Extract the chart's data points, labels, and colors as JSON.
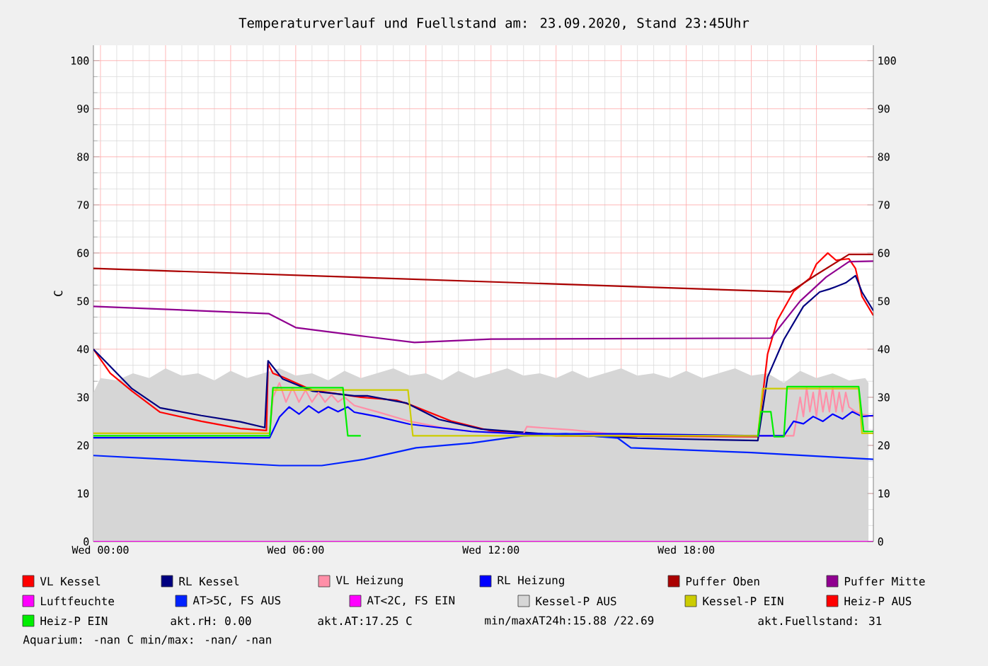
{
  "chart_data": {
    "type": "line",
    "title": "Temperaturverlauf und Fuellstand am: 23.09.2020, Stand 23:45Uhr",
    "ylabel": "C",
    "xlim": [
      "2020-09-22T23:47",
      "2020-09-23T23:45"
    ],
    "xticks": [
      {
        "value": "2020-09-23T00:00",
        "label": "Wed 00:00"
      },
      {
        "value": "2020-09-23T02:00",
        "label": null
      },
      {
        "value": "2020-09-23T04:00",
        "label": null
      },
      {
        "value": "2020-09-23T06:00",
        "label": "Wed 06:00"
      },
      {
        "value": "2020-09-23T08:00",
        "label": null
      },
      {
        "value": "2020-09-23T10:00",
        "label": null
      },
      {
        "value": "2020-09-23T12:00",
        "label": "Wed 12:00"
      },
      {
        "value": "2020-09-23T14:00",
        "label": null
      },
      {
        "value": "2020-09-23T16:00",
        "label": null
      },
      {
        "value": "2020-09-23T18:00",
        "label": "Wed 18:00"
      },
      {
        "value": "2020-09-23T20:00",
        "label": null
      },
      {
        "value": "2020-09-23T22:00",
        "label": null
      }
    ],
    "ylim": [
      0,
      103.2
    ],
    "yticks": [
      0,
      10,
      20,
      30,
      40,
      50,
      60,
      70,
      80,
      90,
      100
    ],
    "y2lim": [
      0,
      103.2
    ],
    "y2ticks": [
      0,
      10,
      20,
      30,
      40,
      50,
      60,
      70,
      80,
      90,
      100
    ],
    "grid": true,
    "legend": "bottom",
    "annotations": [
      "akt.rH: 0.00",
      "akt.AT:17.25 C",
      "min/maxAT24h:15.88 /22.69",
      "akt.Fuellstand:   31",
      "Aquarium: -nan C  min/max: -nan/ -nan"
    ],
    "series": [
      {
        "name": "VL Kessel",
        "color": "#ff0000",
        "x": [
          "2020-09-22T23:47",
          "2020-09-23T00:18",
          "2020-09-23T00:58",
          "2020-09-23T01:50",
          "2020-09-23T03:06",
          "2020-09-23T04:18",
          "2020-09-23T05:06",
          "2020-09-23T05:09",
          "2020-09-23T05:18",
          "2020-09-23T05:36",
          "2020-09-23T06:30",
          "2020-09-23T08:00",
          "2020-09-23T09:06",
          "2020-09-23T09:30",
          "2020-09-23T10:48",
          "2020-09-23T12:00",
          "2020-09-23T14:00",
          "2020-09-23T20:12",
          "2020-09-23T20:30",
          "2020-09-23T20:48",
          "2020-09-23T21:18",
          "2020-09-23T21:48",
          "2020-09-23T22:00",
          "2020-09-23T22:21",
          "2020-09-23T22:36",
          "2020-09-23T23:00",
          "2020-09-23T23:12",
          "2020-09-23T23:24",
          "2020-09-23T23:45"
        ],
        "values": [
          40,
          35,
          31.3,
          26.9,
          25,
          23.5,
          23.1,
          37,
          35,
          34.2,
          31.5,
          30,
          29.4,
          28.5,
          25,
          23,
          22,
          21.8,
          39,
          46,
          52,
          54.8,
          57.7,
          60,
          58.5,
          58.8,
          56.8,
          51,
          47
        ]
      },
      {
        "name": "RL Kessel",
        "color": "#000080",
        "x": [
          "2020-09-22T23:47",
          "2020-09-23T00:58",
          "2020-09-23T01:50",
          "2020-09-23T03:06",
          "2020-09-23T04:18",
          "2020-09-23T05:03",
          "2020-09-23T05:09",
          "2020-09-23T05:36",
          "2020-09-23T06:30",
          "2020-09-23T07:48",
          "2020-09-23T08:12",
          "2020-09-23T09:24",
          "2020-09-23T10:24",
          "2020-09-23T11:42",
          "2020-09-23T13:36",
          "2020-09-23T16:30",
          "2020-09-23T20:12",
          "2020-09-23T20:30",
          "2020-09-23T21:00",
          "2020-09-23T21:36",
          "2020-09-23T22:06",
          "2020-09-23T22:24",
          "2020-09-23T22:36",
          "2020-09-23T22:54",
          "2020-09-23T23:12",
          "2020-09-23T23:24",
          "2020-09-23T23:45"
        ],
        "values": [
          40,
          31.8,
          27.8,
          26.2,
          24.9,
          23.7,
          37.6,
          33.8,
          31.3,
          30.3,
          30.3,
          28.8,
          25.4,
          23.4,
          22.4,
          21.5,
          21,
          34.2,
          42,
          48.9,
          51.9,
          52.5,
          53,
          53.8,
          55.3,
          51.9,
          48
        ]
      },
      {
        "name": "VL Heizung",
        "color": "#ff8fa8",
        "x": [
          "2020-09-22T23:47",
          "2020-09-23T05:12",
          "2020-09-23T05:18",
          "2020-09-23T05:30",
          "2020-09-23T05:42",
          "2020-09-23T05:54",
          "2020-09-23T06:06",
          "2020-09-23T06:18",
          "2020-09-23T06:30",
          "2020-09-23T06:42",
          "2020-09-23T06:54",
          "2020-09-23T07:06",
          "2020-09-23T07:18",
          "2020-09-23T07:30",
          "2020-09-23T07:48",
          "2020-09-23T08:30",
          "2020-09-23T09:30",
          "2020-09-23T10:30",
          "2020-09-23T11:24",
          "2020-09-23T13:00",
          "2020-09-23T13:06",
          "2020-09-23T14:30",
          "2020-09-23T16:00",
          "2020-09-23T20:12",
          "2020-09-23T21:18",
          "2020-09-23T21:30",
          "2020-09-23T21:36",
          "2020-09-23T21:42",
          "2020-09-23T21:48",
          "2020-09-23T21:54",
          "2020-09-23T22:00",
          "2020-09-23T22:06",
          "2020-09-23T22:12",
          "2020-09-23T22:18",
          "2020-09-23T22:24",
          "2020-09-23T22:30",
          "2020-09-23T22:36",
          "2020-09-23T22:42",
          "2020-09-23T22:48",
          "2020-09-23T22:54",
          "2020-09-23T23:00",
          "2020-09-23T23:12",
          "2020-09-23T23:24",
          "2020-09-23T23:45"
        ],
        "values": [
          22.5,
          22.5,
          30,
          33,
          29,
          32,
          29,
          31.5,
          29,
          31,
          29,
          30.5,
          29,
          30,
          28.3,
          27,
          25,
          23.7,
          22.9,
          22.4,
          23.9,
          23.2,
          22.2,
          22,
          22,
          30,
          26,
          32,
          27,
          31,
          26,
          32,
          27,
          31,
          27,
          32,
          27,
          31,
          27,
          31,
          28,
          27,
          26.5,
          26
        ]
      },
      {
        "name": "RL Heizung",
        "color": "#0000ff",
        "x": [
          "2020-09-22T23:47",
          "2020-09-23T05:12",
          "2020-09-23T05:30",
          "2020-09-23T05:48",
          "2020-09-23T06:06",
          "2020-09-23T06:24",
          "2020-09-23T06:42",
          "2020-09-23T07:00",
          "2020-09-23T07:18",
          "2020-09-23T07:36",
          "2020-09-23T07:48",
          "2020-09-23T08:30",
          "2020-09-23T09:30",
          "2020-09-23T11:24",
          "2020-09-23T13:00",
          "2020-09-23T16:00",
          "2020-09-23T20:12",
          "2020-09-23T21:00",
          "2020-09-23T21:18",
          "2020-09-23T21:36",
          "2020-09-23T21:54",
          "2020-09-23T22:12",
          "2020-09-23T22:30",
          "2020-09-23T22:48",
          "2020-09-23T23:06",
          "2020-09-23T23:24",
          "2020-09-23T23:45"
        ],
        "values": [
          21.6,
          21.6,
          25.9,
          28,
          26.5,
          28.2,
          26.8,
          28,
          27,
          28,
          26.9,
          26,
          24.4,
          22.9,
          22.4,
          22.4,
          22,
          22,
          25,
          24.5,
          26,
          25,
          26.5,
          25.5,
          27,
          26,
          26.2
        ]
      },
      {
        "name": "Puffer Oben",
        "color": "#aa0000",
        "x": [
          "2020-09-22T23:47",
          "2020-09-23T21:12",
          "2020-09-23T22:00",
          "2020-09-23T23:00",
          "2020-09-23T23:45"
        ],
        "values": [
          56.8,
          51.9,
          55.5,
          59.7,
          59.7
        ]
      },
      {
        "name": "Puffer Mitte",
        "color": "#900090",
        "x": [
          "2020-09-22T23:47",
          "2020-09-23T05:10",
          "2020-09-23T06:00",
          "2020-09-23T08:12",
          "2020-09-23T09:39",
          "2020-09-23T12:00",
          "2020-09-23T20:36",
          "2020-09-23T21:30",
          "2020-09-23T22:18",
          "2020-09-23T23:00",
          "2020-09-23T23:45"
        ],
        "values": [
          48.9,
          47.4,
          44.5,
          42.6,
          41.4,
          42.1,
          42.3,
          50,
          55,
          58.2,
          58.3
        ]
      },
      {
        "name": "Luftfeuchte",
        "color": "#ff00ff",
        "x": [
          "2020-09-22T23:47",
          "2020-09-23T23:45"
        ],
        "values": [
          0,
          0
        ]
      },
      {
        "name": "AT>5C, FS AUS",
        "color": "#0022ff",
        "x": [
          "2020-09-22T23:47",
          "2020-09-23T02:00",
          "2020-09-23T05:30",
          "2020-09-23T06:48",
          "2020-09-23T08:06",
          "2020-09-23T09:42",
          "2020-09-23T11:24",
          "2020-09-23T13:00",
          "2020-09-23T14:18",
          "2020-09-23T15:54",
          "2020-09-23T16:18",
          "2020-09-23T20:00",
          "2020-09-23T23:45"
        ],
        "values": [
          17.9,
          17.1,
          15.8,
          15.8,
          17.1,
          19.5,
          20.5,
          22,
          22.4,
          21.5,
          19.5,
          18.5,
          17.1
        ]
      },
      {
        "name": "AT<2C, FS EIN",
        "color": "#ff00ff"
      },
      {
        "name": "Kessel-P AUS",
        "type": "area",
        "color": "#d6d6d6",
        "x": [
          "2020-09-22T23:47",
          "2020-09-23T00:00",
          "2020-09-23T00:30",
          "2020-09-23T01:00",
          "2020-09-23T01:30",
          "2020-09-23T02:00",
          "2020-09-23T02:30",
          "2020-09-23T03:00",
          "2020-09-23T03:30",
          "2020-09-23T04:00",
          "2020-09-23T04:30",
          "2020-09-23T05:00",
          "2020-09-23T05:30",
          "2020-09-23T06:00",
          "2020-09-23T06:30",
          "2020-09-23T07:00",
          "2020-09-23T07:30",
          "2020-09-23T08:00",
          "2020-09-23T08:30",
          "2020-09-23T09:00",
          "2020-09-23T09:30",
          "2020-09-23T10:00",
          "2020-09-23T10:30",
          "2020-09-23T11:00",
          "2020-09-23T11:30",
          "2020-09-23T12:00",
          "2020-09-23T12:30",
          "2020-09-23T13:00",
          "2020-09-23T13:30",
          "2020-09-23T14:00",
          "2020-09-23T14:30",
          "2020-09-23T15:00",
          "2020-09-23T15:30",
          "2020-09-23T16:00",
          "2020-09-23T16:30",
          "2020-09-23T17:00",
          "2020-09-23T17:30",
          "2020-09-23T18:00",
          "2020-09-23T18:30",
          "2020-09-23T19:00",
          "2020-09-23T19:30",
          "2020-09-23T20:00",
          "2020-09-23T20:30",
          "2020-09-23T21:00",
          "2020-09-23T21:30",
          "2020-09-23T22:00",
          "2020-09-23T22:30",
          "2020-09-23T23:00",
          "2020-09-23T23:30",
          "2020-09-23T23:36"
        ],
        "values": [
          31,
          34,
          33.5,
          35,
          34,
          36,
          34.5,
          35,
          33.5,
          35.5,
          34,
          35,
          36,
          34.5,
          35,
          33.5,
          35.5,
          34,
          35,
          36,
          34.5,
          35,
          33.5,
          35.5,
          34,
          35,
          36,
          34.5,
          35,
          34,
          35.5,
          34,
          35,
          36,
          34.5,
          35,
          34,
          35.5,
          34,
          35,
          36,
          34.5,
          35,
          33,
          35.5,
          34,
          35,
          33.5,
          34,
          33
        ]
      },
      {
        "name": "Kessel-P EIN",
        "color": "#cccc00",
        "x": [
          "2020-09-22T23:47",
          "2020-09-23T05:12",
          "2020-09-23T05:18",
          "2020-09-23T09:27",
          "2020-09-23T09:36",
          "2020-09-23T20:12",
          "2020-09-23T20:21",
          "2020-09-23T21:06",
          "2020-09-23T23:18",
          "2020-09-23T23:24",
          "2020-09-23T23:45"
        ],
        "values": [
          22.5,
          22.5,
          31.5,
          31.5,
          22,
          22,
          31.8,
          31.8,
          31.8,
          22.5,
          22.5
        ]
      },
      {
        "name": "Heiz-P AUS",
        "color": "#ff0000"
      },
      {
        "name": "Heiz-P EIN",
        "color": "#00ee00",
        "x": [
          "2020-09-22T23:47",
          "2020-09-23T05:12",
          "2020-09-23T05:18",
          "2020-09-23T07:27",
          "2020-09-23T07:36",
          "2020-09-23T08:00",
          "2020-09-23T08:06",
          "2020-09-23T20:12",
          "2020-09-23T20:18",
          "2020-09-23T20:36",
          "2020-09-23T20:42",
          "2020-09-23T21:00",
          "2020-09-23T21:06",
          "2020-09-23T23:18",
          "2020-09-23T23:27",
          "2020-09-23T23:45"
        ],
        "values": [
          22,
          22,
          32,
          32,
          22,
          22,
          null,
          21.8,
          27,
          27,
          21.8,
          21.8,
          32.2,
          32.2,
          22.9,
          22.9
        ]
      }
    ]
  }
}
